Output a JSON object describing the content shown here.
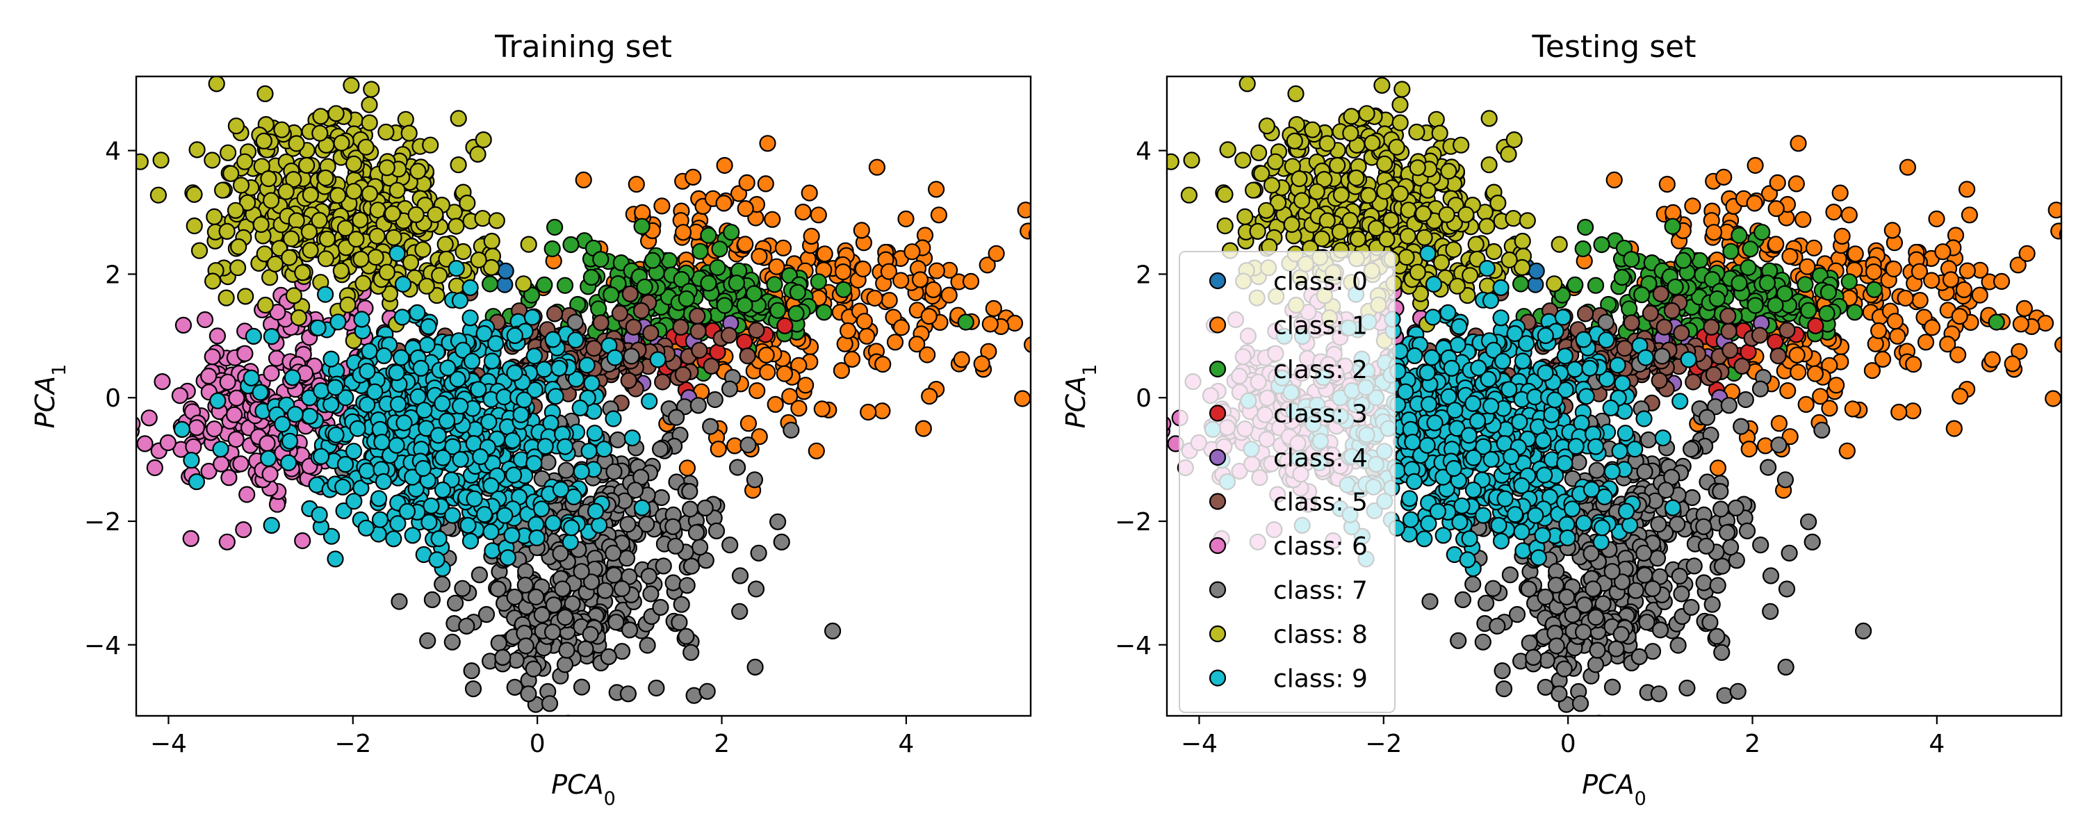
{
  "chart_data": [
    {
      "type": "scatter",
      "title": "Training set",
      "xlabel": {
        "base": "PCA",
        "sub": "0"
      },
      "ylabel": {
        "base": "PCA",
        "sub": "1"
      },
      "xlim": [
        -4.35,
        5.35
      ],
      "ylim": [
        -5.15,
        5.2
      ],
      "xticks": [
        -4,
        -2,
        0,
        2,
        4
      ],
      "yticks": [
        -4,
        -2,
        0,
        2,
        4
      ],
      "xtick_labels": [
        "−4",
        "−2",
        "0",
        "2",
        "4"
      ],
      "ytick_labels": [
        "−4",
        "−2",
        "0",
        "2",
        "4"
      ],
      "grid": false,
      "legend": null
    },
    {
      "type": "scatter",
      "title": "Testing set",
      "xlabel": {
        "base": "PCA",
        "sub": "0"
      },
      "ylabel": {
        "base": "PCA",
        "sub": "1"
      },
      "xlim": [
        -4.35,
        5.35
      ],
      "ylim": [
        -5.15,
        5.2
      ],
      "xticks": [
        -4,
        -2,
        0,
        2,
        4
      ],
      "yticks": [
        -4,
        -2,
        0,
        2,
        4
      ],
      "xtick_labels": [
        "−4",
        "−2",
        "0",
        "2",
        "4"
      ],
      "ytick_labels": [
        "−4",
        "−2",
        "0",
        "2",
        "4"
      ],
      "grid": false,
      "legend": "center-left"
    }
  ],
  "series": [
    {
      "name": "class: 0",
      "color": "#1f77b4",
      "clusters": [
        {
          "cx": -0.4,
          "cy": 2.1,
          "sx": 0.12,
          "sy": 0.12,
          "n": 4
        }
      ]
    },
    {
      "name": "class: 1",
      "color": "#ff7f0e",
      "clusters": [
        {
          "cx": 3.3,
          "cy": 1.5,
          "sx": 0.9,
          "sy": 0.75,
          "n": 200
        },
        {
          "cx": 1.6,
          "cy": 2.6,
          "sx": 0.7,
          "sy": 0.5,
          "n": 60
        },
        {
          "cx": 2.3,
          "cy": -0.2,
          "sx": 0.5,
          "sy": 0.6,
          "n": 25
        }
      ]
    },
    {
      "name": "class: 2",
      "color": "#2ca02c",
      "clusters": [
        {
          "cx": 1.4,
          "cy": 1.6,
          "sx": 0.8,
          "sy": 0.45,
          "n": 230
        }
      ]
    },
    {
      "name": "class: 3",
      "color": "#d62728",
      "clusters": [
        {
          "cx": 1.2,
          "cy": 0.8,
          "sx": 0.6,
          "sy": 0.25,
          "n": 25
        }
      ]
    },
    {
      "name": "class: 4",
      "color": "#9467bd",
      "clusters": [
        {
          "cx": 1.1,
          "cy": 0.7,
          "sx": 0.6,
          "sy": 0.35,
          "n": 15
        }
      ]
    },
    {
      "name": "class: 5",
      "color": "#8c564b",
      "clusters": [
        {
          "cx": 0.6,
          "cy": 0.7,
          "sx": 0.8,
          "sy": 0.35,
          "n": 130
        }
      ]
    },
    {
      "name": "class: 6",
      "color": "#e377c2",
      "clusters": [
        {
          "cx": -3.0,
          "cy": -0.3,
          "sx": 0.45,
          "sy": 0.65,
          "n": 230
        },
        {
          "cx": -2.2,
          "cy": 1.2,
          "sx": 0.4,
          "sy": 0.3,
          "n": 25
        }
      ]
    },
    {
      "name": "class: 7",
      "color": "#7f7f7f",
      "clusters": [
        {
          "cx": 0.6,
          "cy": -2.3,
          "sx": 0.75,
          "sy": 1.15,
          "n": 380
        },
        {
          "cx": 0.1,
          "cy": -3.8,
          "sx": 0.45,
          "sy": 0.45,
          "n": 90
        }
      ]
    },
    {
      "name": "class: 8",
      "color": "#bcbd22",
      "clusters": [
        {
          "cx": -2.2,
          "cy": 3.1,
          "sx": 0.7,
          "sy": 0.75,
          "n": 380
        },
        {
          "cx": -1.2,
          "cy": 2.3,
          "sx": 0.55,
          "sy": 0.45,
          "n": 70
        }
      ]
    },
    {
      "name": "class: 9",
      "color": "#17becf",
      "clusters": [
        {
          "cx": -1.1,
          "cy": -0.4,
          "sx": 0.85,
          "sy": 0.85,
          "n": 600
        },
        {
          "cx": -0.5,
          "cy": -1.9,
          "sx": 0.5,
          "sy": 0.35,
          "n": 60
        }
      ]
    }
  ]
}
